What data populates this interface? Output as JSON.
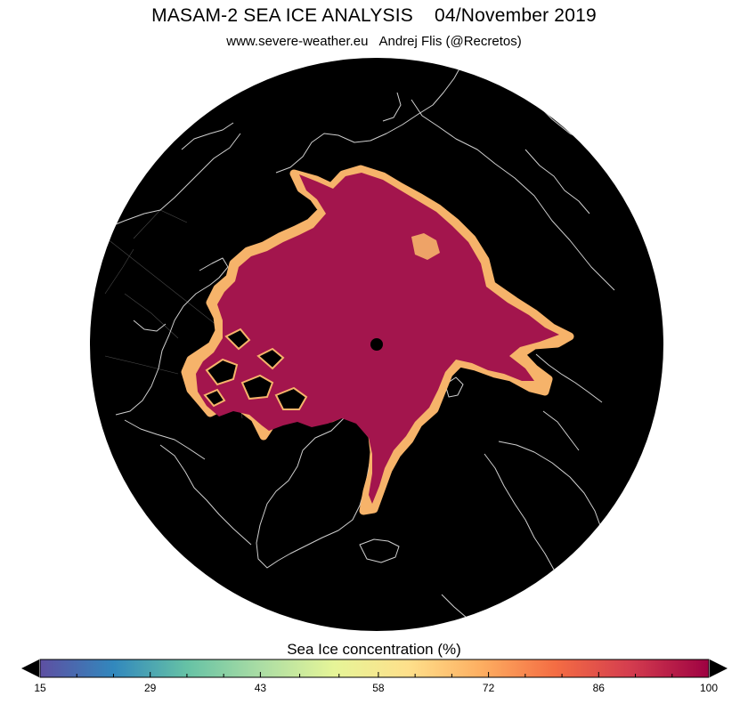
{
  "header": {
    "title": "MASAM-2 SEA ICE ANALYSIS",
    "date": "04/November 2019",
    "website": "www.severe-weather.eu",
    "author": "Andrej Flis (@Recretos)"
  },
  "map": {
    "projection": "north-polar-stereographic",
    "background_color": "#000000",
    "coastline_color": "#d0d0d0",
    "ice_core_color": "#a3154d",
    "ice_edge_color": "#f6b36a",
    "pole_marker_color": "#000000"
  },
  "legend": {
    "title": "Sea Ice concentration (%)",
    "min": 15,
    "max": 100,
    "ticks": [
      "15",
      "29",
      "43",
      "58",
      "72",
      "86",
      "100"
    ],
    "colors": [
      "#5e4fa2",
      "#3288bd",
      "#66c2a5",
      "#abdda4",
      "#e6f598",
      "#fee08b",
      "#fdae61",
      "#f46d43",
      "#d53e4f",
      "#9e0142"
    ]
  }
}
